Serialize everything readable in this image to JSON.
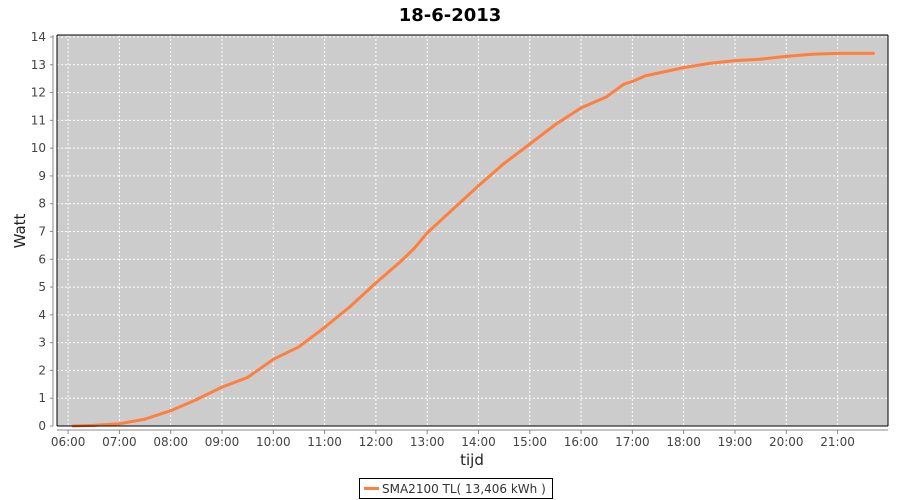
{
  "chart_data": {
    "type": "line",
    "title": "18-6-2013",
    "xlabel": "tijd",
    "ylabel": "Watt",
    "xlim": [
      "05:47",
      "21:59"
    ],
    "ylim": [
      0,
      14
    ],
    "x_ticks": [
      "06:00",
      "07:00",
      "08:00",
      "09:00",
      "10:00",
      "11:00",
      "12:00",
      "13:00",
      "14:00",
      "15:00",
      "16:00",
      "17:00",
      "18:00",
      "19:00",
      "20:00",
      "21:00"
    ],
    "y_ticks": [
      0,
      1,
      2,
      3,
      4,
      5,
      6,
      7,
      8,
      9,
      10,
      11,
      12,
      13,
      14
    ],
    "grid": true,
    "legend_position": "bottom",
    "background": "#cccccc",
    "series": [
      {
        "name": "SMA2100 TL( 13,406 kWh )",
        "color": "#ff7f3f",
        "x": [
          "06:06",
          "06:30",
          "07:00",
          "07:30",
          "08:00",
          "08:30",
          "09:00",
          "09:30",
          "10:00",
          "10:30",
          "11:00",
          "11:30",
          "12:00",
          "12:30",
          "12:45",
          "13:00",
          "13:30",
          "14:00",
          "14:30",
          "15:00",
          "15:30",
          "16:00",
          "16:30",
          "16:50",
          "17:00",
          "17:15",
          "17:30",
          "18:00",
          "18:30",
          "19:00",
          "19:30",
          "20:00",
          "20:30",
          "21:00",
          "21:42"
        ],
        "y": [
          0.0,
          0.02,
          0.08,
          0.25,
          0.55,
          0.95,
          1.4,
          1.75,
          2.4,
          2.85,
          3.55,
          4.3,
          5.15,
          5.95,
          6.4,
          6.95,
          7.8,
          8.65,
          9.45,
          10.15,
          10.85,
          11.45,
          11.85,
          12.3,
          12.4,
          12.6,
          12.7,
          12.9,
          13.05,
          13.15,
          13.2,
          13.3,
          13.38,
          13.41,
          13.41
        ]
      }
    ]
  }
}
